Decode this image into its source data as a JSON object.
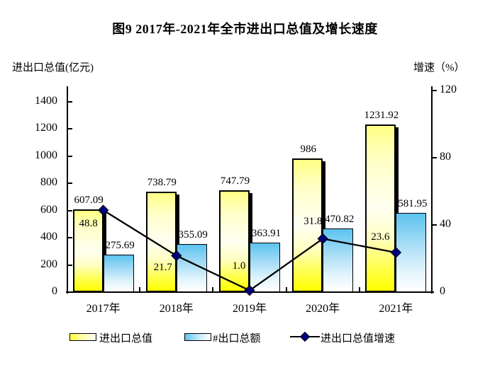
{
  "page": {
    "background": "#ffffff"
  },
  "title": "图9  2017年-2021年全市进出口总值及增长速度",
  "axis_titles": {
    "left": "进出口总值(亿元)",
    "right": "增速（%）"
  },
  "legend": {
    "position": "bottom",
    "items": [
      {
        "label": "进出口总值",
        "swatch": "yellow-gradient-bar"
      },
      {
        "label": "#出口总额",
        "swatch": "blue-gradient-bar"
      },
      {
        "label": "进出口总值增速",
        "swatch": "black-line-navy-diamond"
      }
    ]
  },
  "chart_data": {
    "type": "combo",
    "categories": [
      "2017年",
      "2018年",
      "2019年",
      "2020年",
      "2021年"
    ],
    "series": [
      {
        "name": "进出口总值",
        "type": "bar",
        "axis": "left",
        "values": [
          607.09,
          738.79,
          747.79,
          986,
          1231.92
        ],
        "labels": [
          "607.09",
          "738.79",
          "747.79",
          "986",
          "1231.92"
        ]
      },
      {
        "name": "#出口总额",
        "type": "bar",
        "axis": "left",
        "values": [
          275.69,
          355.09,
          363.91,
          470.82,
          581.95
        ],
        "labels": [
          "275.69",
          "355.09",
          "363.91",
          "470.82",
          "581.95"
        ]
      },
      {
        "name": "进出口总值增速",
        "type": "line",
        "axis": "right",
        "values": [
          48.8,
          21.7,
          1.0,
          31.8,
          23.6
        ],
        "labels": [
          "48.8",
          "21.7",
          "1.0",
          "31.8",
          "23.6"
        ]
      }
    ],
    "left_axis": {
      "title": "进出口总值(亿元)",
      "min": 0,
      "max": 1400,
      "step": 200
    },
    "right_axis": {
      "title": "增速（%）",
      "min": 0,
      "max": 120,
      "step": 40
    },
    "grid": false,
    "legend_position": "bottom",
    "colors": {
      "bar1_top": "#FFFF85",
      "bar1_mid": "#FFFFF2",
      "bar1_bottom": "#FFFF00",
      "bar2_top": "#5CC3EF",
      "bar2_bottom": "#FFFFFF",
      "line": "#000000",
      "marker_fill": "#000080",
      "bar_shadow": "#000000",
      "axis": "#000000",
      "text": "#000000"
    }
  }
}
